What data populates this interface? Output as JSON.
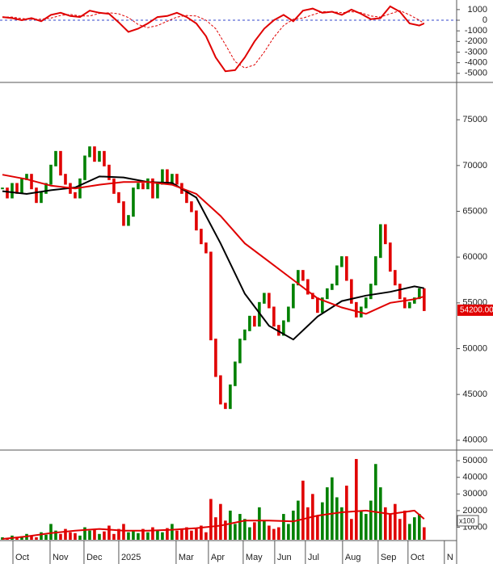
{
  "chart_data": [
    {
      "type": "line",
      "ylim": [
        -5700,
        1750
      ],
      "yticks": [
        1000,
        0,
        -1000,
        -2000,
        -3000,
        -4000,
        -5000
      ],
      "xlim": [
        -0.5,
        93.7
      ],
      "zero_line": true,
      "series": [
        {
          "color": "#e00000",
          "dashed": false,
          "x": [
            0,
            2,
            4,
            6,
            8,
            10,
            12,
            14,
            16,
            18,
            20,
            22,
            24,
            26,
            28,
            30,
            32,
            34,
            36,
            38,
            40,
            42,
            44,
            46,
            48,
            50,
            52,
            54,
            56,
            58,
            60,
            62,
            64,
            66,
            68,
            70,
            72,
            74,
            76,
            78,
            80,
            82,
            84,
            86,
            87
          ],
          "values": [
            300,
            200,
            0,
            200,
            -100,
            500,
            700,
            400,
            300,
            900,
            700,
            600,
            -200,
            -1100,
            -800,
            -300,
            300,
            400,
            700,
            300,
            -300,
            -1500,
            -3500,
            -4800,
            -4700,
            -3500,
            -2000,
            -800,
            0,
            500,
            -100,
            900,
            1100,
            700,
            800,
            500,
            1000,
            600,
            100,
            200,
            1300,
            800,
            -300,
            -500,
            -300
          ]
        },
        {
          "color": "#e00000",
          "dashed": true,
          "x": [
            0,
            2,
            4,
            6,
            8,
            10,
            12,
            14,
            16,
            18,
            20,
            22,
            24,
            26,
            28,
            30,
            32,
            34,
            36,
            38,
            40,
            42,
            44,
            46,
            48,
            50,
            52,
            54,
            56,
            58,
            60,
            62,
            64,
            66,
            68,
            70,
            72,
            74,
            76,
            78,
            80,
            82,
            84,
            86,
            87
          ],
          "values": [
            300,
            300,
            150,
            100,
            100,
            200,
            450,
            550,
            400,
            400,
            650,
            700,
            600,
            250,
            -400,
            -700,
            -500,
            -100,
            300,
            450,
            400,
            0,
            -800,
            -2300,
            -3900,
            -4500,
            -4200,
            -3000,
            -1600,
            -500,
            100,
            200,
            500,
            800,
            800,
            700,
            800,
            700,
            400,
            300,
            600,
            900,
            500,
            0,
            -300
          ]
        }
      ]
    },
    {
      "type": "candlestick",
      "ylim": [
        39100,
        78900
      ],
      "yticks": [
        75000,
        70000,
        65000,
        60000,
        55000,
        50000,
        45000,
        40000
      ],
      "xlim": [
        -0.5,
        93.7
      ],
      "up_color": "#008000",
      "down_color": "#e00000",
      "close": [
        67500,
        66500,
        68000,
        67000,
        68500,
        69000,
        67500,
        66000,
        67000,
        68000,
        70000,
        71500,
        69000,
        68000,
        67000,
        66500,
        68500,
        71000,
        72000,
        70500,
        71500,
        70000,
        68500,
        67000,
        66000,
        63500,
        64500,
        67500,
        68000,
        67500,
        68500,
        66500,
        68000,
        69500,
        68000,
        69000,
        68000,
        67000,
        66000,
        65000,
        63000,
        61500,
        60500,
        51000,
        47000,
        44000,
        43500,
        46000,
        48500,
        51000,
        52000,
        53500,
        52500,
        55000,
        56000,
        54500,
        52500,
        51500,
        53000,
        54500,
        57000,
        58500,
        57500,
        56000,
        55500,
        54000,
        55500,
        56500,
        57000,
        59000,
        60000,
        57500,
        55000,
        53500,
        54500,
        55500,
        57000,
        60000,
        63500,
        61500,
        58500,
        57000,
        55500,
        54500,
        55000,
        55500,
        56500,
        54200
      ],
      "last_price": {
        "value": 54200,
        "label": "54200.00"
      },
      "series": [
        {
          "color": "#000000",
          "x": [
            0,
            5,
            10,
            15,
            20,
            25,
            30,
            35,
            40,
            45,
            50,
            55,
            60,
            65,
            70,
            75,
            80,
            85,
            87
          ],
          "values": [
            67200,
            66900,
            67300,
            67600,
            68800,
            68700,
            68200,
            68100,
            66500,
            61500,
            56000,
            52500,
            51000,
            53500,
            55200,
            55800,
            56200,
            56800,
            56600
          ]
        },
        {
          "color": "#e00000",
          "x": [
            0,
            5,
            10,
            15,
            20,
            25,
            30,
            35,
            40,
            45,
            50,
            55,
            60,
            65,
            70,
            75,
            80,
            85,
            87
          ],
          "values": [
            69000,
            68500,
            67800,
            67500,
            67900,
            68200,
            68200,
            67900,
            66900,
            64500,
            61500,
            59500,
            57500,
            55500,
            54500,
            53800,
            55000,
            55400,
            55700
          ]
        }
      ]
    },
    {
      "type": "bar",
      "ylim": [
        2500,
        55400
      ],
      "yticks": [
        50000,
        40000,
        30000,
        20000,
        10000
      ],
      "xlim": [
        -0.5,
        93.7
      ],
      "unit_label": "x100",
      "values": [
        4000,
        3000,
        5000,
        3500,
        4500,
        6000,
        5000,
        4000,
        7000,
        5500,
        12000,
        8000,
        6000,
        9000,
        7000,
        6500,
        5000,
        10000,
        8000,
        9000,
        6000,
        7500,
        11000,
        6000,
        9000,
        12000,
        7000,
        8000,
        6500,
        9000,
        7000,
        10000,
        8500,
        7000,
        9500,
        12000,
        8000,
        9000,
        10000,
        8000,
        9000,
        11000,
        7000,
        27000,
        16000,
        24000,
        14000,
        20000,
        12000,
        18000,
        15000,
        10000,
        13000,
        22000,
        14000,
        11000,
        9000,
        10000,
        18000,
        12000,
        20000,
        26000,
        38000,
        22000,
        30000,
        17000,
        25000,
        34000,
        40000,
        28000,
        22000,
        35000,
        15000,
        51000,
        20000,
        18000,
        26000,
        48000,
        34000,
        22000,
        18000,
        24000,
        15000,
        20000,
        12000,
        16000,
        18000,
        10000
      ],
      "series": [
        {
          "color": "#e00000",
          "x": [
            0,
            5,
            10,
            15,
            20,
            25,
            30,
            35,
            40,
            45,
            50,
            55,
            60,
            65,
            70,
            75,
            80,
            85,
            87
          ],
          "values": [
            3000,
            4500,
            6500,
            8000,
            9000,
            8000,
            8000,
            8500,
            9500,
            11000,
            14000,
            14000,
            13500,
            17000,
            19000,
            20000,
            18000,
            20000,
            15000
          ]
        }
      ],
      "xticks": [
        {
          "value": 2.17,
          "label": "Oct"
        },
        {
          "value": 9.83,
          "label": "Nov"
        },
        {
          "value": 16.83,
          "label": "Dec"
        },
        {
          "value": 24,
          "label": "2025"
        },
        {
          "value": 35.83,
          "label": "Mar"
        },
        {
          "value": 42.5,
          "label": "Apr"
        },
        {
          "value": 49.67,
          "label": "May"
        },
        {
          "value": 56.17,
          "label": "Jun"
        },
        {
          "value": 62.5,
          "label": "Jul"
        },
        {
          "value": 70.17,
          "label": "Aug"
        },
        {
          "value": 77.5,
          "label": "Sep"
        },
        {
          "value": 83.67,
          "label": "Oct"
        },
        {
          "value": 91.17,
          "label": "N"
        }
      ]
    }
  ]
}
